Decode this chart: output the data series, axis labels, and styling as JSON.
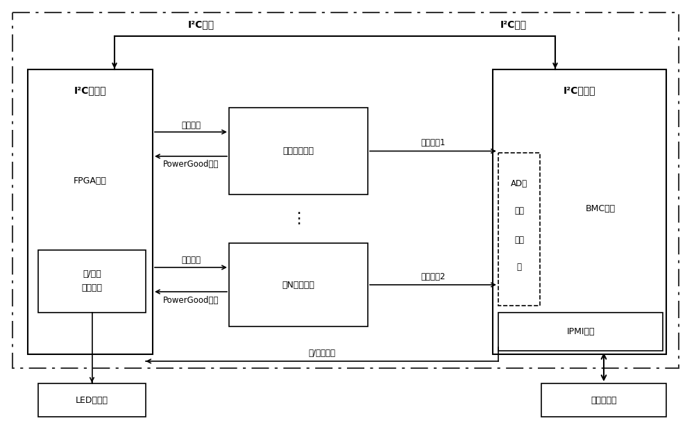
{
  "bg_color": "#ffffff",
  "fig_width": 10.0,
  "fig_height": 6.32,
  "labels": {
    "i2c_bus_left": "I²C总线",
    "i2c_bus_right": "I²C总线",
    "i2c_slave": "I²C从设备",
    "fpga": "FPGA芜片",
    "on_off_detect_1": "开/关机",
    "on_off_detect_2": "信号检测",
    "led": "LED指示灯",
    "power1": "第一电源模块",
    "powerN": "第N电源模块",
    "i2c_master": "I²C主设备",
    "bmc": "BMC芜片",
    "ad_1": "AD电",
    "ad_2": "压采",
    "ad_3": "样接",
    "ad_4": "口",
    "ipmi": "IPMI接口",
    "chassis": "机箱管理器",
    "enable_sig": "使能信号",
    "powergood_sig": "PowerGood信号",
    "voltage_out1": "电压输出1",
    "voltage_out2": "电压输出2",
    "on_off_signal": "开/关机信号"
  }
}
